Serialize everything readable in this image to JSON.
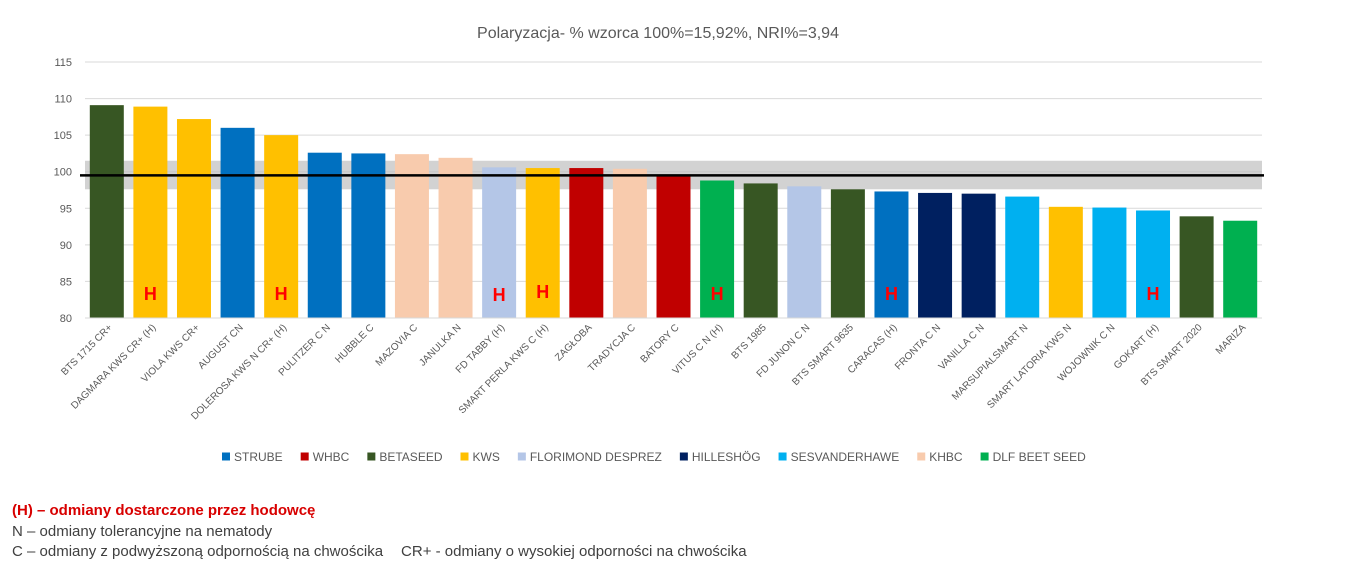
{
  "chart_data": {
    "type": "bar",
    "title": "Polaryzacja- % wzorca 100%=15,92%, NRI%=3,94",
    "ylim": [
      80,
      115
    ],
    "yticks": [
      80,
      85,
      90,
      95,
      100,
      105,
      110,
      115
    ],
    "grid": true,
    "reference_line": 99.5,
    "reference_band": [
      97.6,
      101.5
    ],
    "legend_position": "bottom",
    "marker_label": "H",
    "categories": [
      "BTS 1715 CR+",
      "DAGMARA KWS CR+ (H)",
      "VIOLA KWS CR+",
      "AUGUST CN",
      "DOLEROSA KWS N CR+ (H)",
      "PULITZER C N",
      "HUBBLE C",
      "MAZOVIA C",
      "JANULKA N",
      "FD TABBY (H)",
      "SMART PERLA KWS C (H)",
      "ZAGŁOBA",
      "TRADYCJA C",
      "BATORY C",
      "VITUS C N (H)",
      "BTS 1985",
      "FD JUNON C N",
      "BTS SMART 9635",
      "CARACAS (H)",
      "FRONTA C N",
      "VANILLA C N",
      "MARSUPIALSMART N",
      "SMART LATORIA KWS N",
      "WOJOWNIK C N",
      "GOKART (H)",
      "BTS SMART 2020",
      "MARIZA"
    ],
    "values": [
      109.1,
      108.9,
      107.2,
      106.0,
      105.0,
      102.6,
      102.5,
      102.4,
      101.9,
      100.6,
      100.5,
      100.5,
      100.4,
      99.6,
      98.8,
      98.4,
      98.0,
      97.6,
      97.3,
      97.1,
      97.0,
      96.6,
      95.2,
      95.1,
      94.7,
      93.9,
      93.3
    ],
    "breeder": [
      "BETASEED",
      "KWS",
      "KWS",
      "STRUBE",
      "KWS",
      "STRUBE",
      "STRUBE",
      "KHBC",
      "KHBC",
      "FLORIMOND DESPREZ",
      "KWS",
      "WHBC",
      "KHBC",
      "WHBC",
      "DLF BEET SEED",
      "BETASEED",
      "FLORIMOND DESPREZ",
      "BETASEED",
      "STRUBE",
      "HILLESHÖG",
      "HILLESHÖG",
      "SESVANDERHAWE",
      "KWS",
      "SESVANDERHAWE",
      "SESVANDERHAWE",
      "BETASEED",
      "DLF BEET SEED"
    ],
    "h_marked": [
      false,
      true,
      false,
      false,
      true,
      false,
      false,
      false,
      false,
      true,
      true,
      false,
      false,
      false,
      true,
      false,
      false,
      false,
      true,
      false,
      false,
      false,
      false,
      false,
      true,
      false,
      false
    ],
    "legend": [
      {
        "name": "STRUBE",
        "color": "#0070C0"
      },
      {
        "name": "WHBC",
        "color": "#C00000"
      },
      {
        "name": "BETASEED",
        "color": "#375623"
      },
      {
        "name": "KWS",
        "color": "#FFC000"
      },
      {
        "name": "FLORIMOND DESPREZ",
        "color": "#B4C6E7"
      },
      {
        "name": "HILLESHÖG",
        "color": "#002060"
      },
      {
        "name": "SESVANDERHAWE",
        "color": "#00B0F0"
      },
      {
        "name": "KHBC",
        "color": "#F8CBAD"
      },
      {
        "name": "DLF BEET SEED",
        "color": "#00B050"
      }
    ]
  },
  "notes": {
    "h_note": "(H) – odmiany dostarczone przez hodowcę",
    "n_note": "N – odmiany tolerancyjne na nematody",
    "c_note": "C – odmiany z podwyższoną odpornością na chwościka",
    "cr_note": "CR+ - odmiany o wysokiej odporności na chwościka"
  }
}
